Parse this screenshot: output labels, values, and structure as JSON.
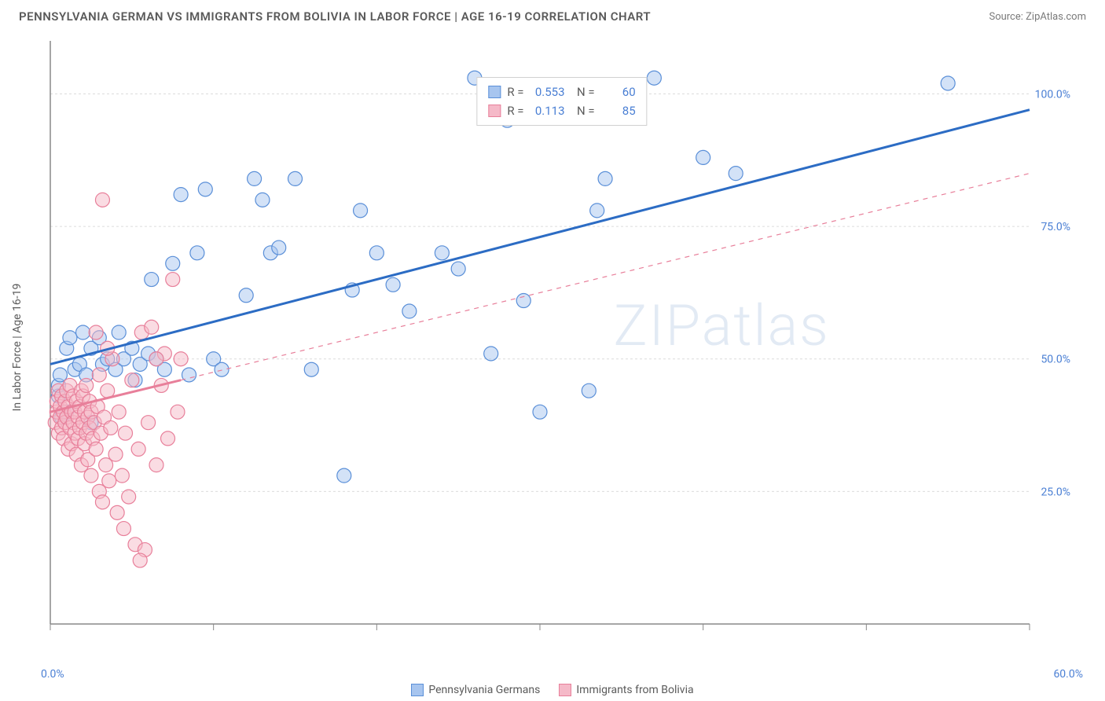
{
  "title": "PENNSYLVANIA GERMAN VS IMMIGRANTS FROM BOLIVIA IN LABOR FORCE | AGE 16-19 CORRELATION CHART",
  "source": "Source: ZipAtlas.com",
  "y_axis_label": "In Labor Force | Age 16-19",
  "watermark": "ZIPatlas",
  "chart": {
    "type": "scatter",
    "background_color": "#ffffff",
    "grid_color": "#dcdcdc",
    "axis_color": "#888888",
    "tick_color": "#888888",
    "tick_label_color": "#4a7fd4",
    "xlim": [
      0,
      60
    ],
    "ylim": [
      0,
      110
    ],
    "x_ticks": [
      0,
      10,
      20,
      30,
      40,
      50,
      60
    ],
    "y_gridlines": [
      25,
      50,
      75,
      100
    ],
    "y_tick_labels": [
      "25.0%",
      "50.0%",
      "75.0%",
      "100.0%"
    ],
    "x_tick_labels": {
      "left": "0.0%",
      "right": "60.0%"
    },
    "marker_radius": 9,
    "marker_opacity": 0.5,
    "marker_stroke_width": 1.2,
    "trend_line_width": 3,
    "series": [
      {
        "name": "Pennsylvania Germans",
        "r_value": "0.553",
        "n_value": "60",
        "fill_color": "#a7c5ef",
        "stroke_color": "#5a8fd8",
        "trend_color": "#2c6cc4",
        "trend_dash": "none",
        "trend_start": {
          "x": 0,
          "y": 49
        },
        "trend_end": {
          "x": 60,
          "y": 97
        },
        "points": [
          [
            0.5,
            43
          ],
          [
            0.5,
            45
          ],
          [
            0.6,
            47
          ],
          [
            0.7,
            39
          ],
          [
            1,
            52
          ],
          [
            1,
            40
          ],
          [
            1.2,
            54
          ],
          [
            1.5,
            48
          ],
          [
            1.8,
            49
          ],
          [
            2,
            55
          ],
          [
            2.2,
            47
          ],
          [
            2.5,
            52
          ],
          [
            2.5,
            38
          ],
          [
            3,
            54
          ],
          [
            3.2,
            49
          ],
          [
            3.5,
            50
          ],
          [
            4,
            48
          ],
          [
            4.2,
            55
          ],
          [
            4.5,
            50
          ],
          [
            5,
            52
          ],
          [
            5.2,
            46
          ],
          [
            5.5,
            49
          ],
          [
            6,
            51
          ],
          [
            6.2,
            65
          ],
          [
            6.5,
            50
          ],
          [
            7,
            48
          ],
          [
            7.5,
            68
          ],
          [
            8,
            81
          ],
          [
            8.5,
            47
          ],
          [
            9,
            70
          ],
          [
            9.5,
            82
          ],
          [
            10,
            50
          ],
          [
            10.5,
            48
          ],
          [
            12,
            62
          ],
          [
            12.5,
            84
          ],
          [
            13,
            80
          ],
          [
            13.5,
            70
          ],
          [
            14,
            71
          ],
          [
            15,
            84
          ],
          [
            16,
            48
          ],
          [
            18,
            28
          ],
          [
            18.5,
            63
          ],
          [
            19,
            78
          ],
          [
            20,
            70
          ],
          [
            21,
            64
          ],
          [
            22,
            59
          ],
          [
            24,
            70
          ],
          [
            25,
            67
          ],
          [
            26,
            103
          ],
          [
            27,
            51
          ],
          [
            28,
            95
          ],
          [
            29,
            61
          ],
          [
            30,
            40
          ],
          [
            33,
            44
          ],
          [
            33.5,
            78
          ],
          [
            34,
            84
          ],
          [
            37,
            103
          ],
          [
            40,
            88
          ],
          [
            42,
            85
          ],
          [
            55,
            102
          ]
        ]
      },
      {
        "name": "Immigrants from Bolivia",
        "r_value": "0.113",
        "n_value": "85",
        "fill_color": "#f5b9c8",
        "stroke_color": "#e87f9a",
        "trend_color": "#e87f9a",
        "trend_dash": "6,6",
        "trend_solid_end_x": 8,
        "trend_start": {
          "x": 0,
          "y": 40
        },
        "trend_end": {
          "x": 60,
          "y": 85
        },
        "points": [
          [
            0.3,
            38
          ],
          [
            0.4,
            40
          ],
          [
            0.4,
            42
          ],
          [
            0.5,
            36
          ],
          [
            0.5,
            44
          ],
          [
            0.6,
            39
          ],
          [
            0.6,
            41
          ],
          [
            0.7,
            37
          ],
          [
            0.7,
            43
          ],
          [
            0.8,
            40
          ],
          [
            0.8,
            35
          ],
          [
            0.9,
            38
          ],
          [
            0.9,
            42
          ],
          [
            1,
            39
          ],
          [
            1,
            44
          ],
          [
            1.1,
            33
          ],
          [
            1.1,
            41
          ],
          [
            1.2,
            37
          ],
          [
            1.2,
            45
          ],
          [
            1.3,
            40
          ],
          [
            1.3,
            34
          ],
          [
            1.4,
            38
          ],
          [
            1.4,
            43
          ],
          [
            1.5,
            36
          ],
          [
            1.5,
            40
          ],
          [
            1.6,
            32
          ],
          [
            1.6,
            42
          ],
          [
            1.7,
            39
          ],
          [
            1.7,
            35
          ],
          [
            1.8,
            41
          ],
          [
            1.8,
            37
          ],
          [
            1.9,
            44
          ],
          [
            1.9,
            30
          ],
          [
            2,
            38
          ],
          [
            2,
            43
          ],
          [
            2.1,
            34
          ],
          [
            2.1,
            40
          ],
          [
            2.2,
            36
          ],
          [
            2.2,
            45
          ],
          [
            2.3,
            39
          ],
          [
            2.3,
            31
          ],
          [
            2.4,
            42
          ],
          [
            2.4,
            37
          ],
          [
            2.5,
            40
          ],
          [
            2.5,
            28
          ],
          [
            2.6,
            35
          ],
          [
            2.7,
            38
          ],
          [
            2.8,
            33
          ],
          [
            2.9,
            41
          ],
          [
            3,
            25
          ],
          [
            3,
            47
          ],
          [
            3.1,
            36
          ],
          [
            3.2,
            23
          ],
          [
            3.3,
            39
          ],
          [
            3.4,
            30
          ],
          [
            3.5,
            44
          ],
          [
            3.6,
            27
          ],
          [
            3.7,
            37
          ],
          [
            3.8,
            50
          ],
          [
            4,
            32
          ],
          [
            4.1,
            21
          ],
          [
            4.2,
            40
          ],
          [
            4.4,
            28
          ],
          [
            4.6,
            36
          ],
          [
            4.8,
            24
          ],
          [
            5,
            46
          ],
          [
            5.2,
            15
          ],
          [
            5.4,
            33
          ],
          [
            5.6,
            55
          ],
          [
            5.8,
            14
          ],
          [
            6,
            38
          ],
          [
            6.2,
            56
          ],
          [
            6.5,
            30
          ],
          [
            6.8,
            45
          ],
          [
            7,
            51
          ],
          [
            7.2,
            35
          ],
          [
            7.5,
            65
          ],
          [
            7.8,
            40
          ],
          [
            8,
            50
          ],
          [
            3.2,
            80
          ],
          [
            2.8,
            55
          ],
          [
            3.5,
            52
          ],
          [
            4.5,
            18
          ],
          [
            5.5,
            12
          ],
          [
            6.5,
            50
          ]
        ]
      }
    ]
  },
  "bottom_legend": [
    {
      "label": "Pennsylvania Germans",
      "fill": "#a7c5ef",
      "stroke": "#5a8fd8"
    },
    {
      "label": "Immigrants from Bolivia",
      "fill": "#f5b9c8",
      "stroke": "#e87f9a"
    }
  ]
}
